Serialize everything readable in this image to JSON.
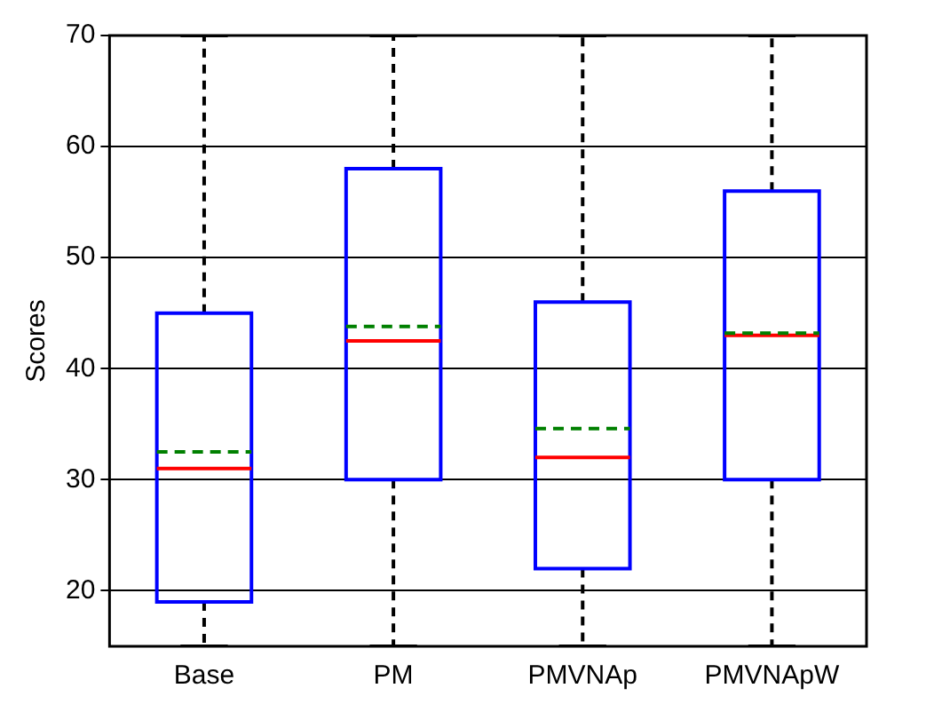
{
  "chart_data": {
    "type": "box",
    "ylabel": "Scores",
    "categories": [
      "Base",
      "PM",
      "PMVNAp",
      "PMVNApW"
    ],
    "color": "#0000ff",
    "boxes": [
      {
        "low": 15,
        "q1": 19,
        "median": 31,
        "q3": 45,
        "high": 70,
        "mean": 32.5
      },
      {
        "low": 15,
        "q1": 30,
        "median": 42.5,
        "q3": 58,
        "high": 70,
        "mean": 43.8
      },
      {
        "low": 15,
        "q1": 22,
        "median": 32,
        "q3": 46,
        "high": 70,
        "mean": 34.6
      },
      {
        "low": 15,
        "q1": 30,
        "median": 43,
        "q3": 56,
        "high": 70,
        "mean": 43.2
      }
    ],
    "ylim": [
      15,
      70
    ],
    "yticks": [
      20,
      30,
      40,
      50,
      60,
      70
    ],
    "grid": "y",
    "legend": false
  }
}
